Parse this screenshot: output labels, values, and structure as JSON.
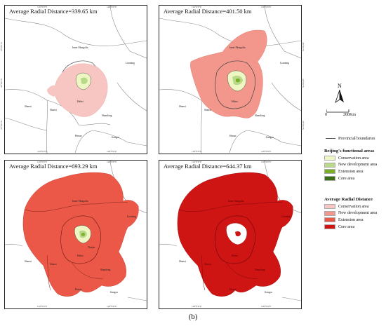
{
  "panels": [
    {
      "title": "Average Radial Distance=339.65 km",
      "level": "conservation"
    },
    {
      "title": "Average Radial Distance=401.50 km",
      "level": "new_development"
    },
    {
      "title": "Average Radial Distance=693.29 km",
      "level": "extension"
    },
    {
      "title": "Average Radial Distance=644.37 km",
      "level": "core"
    }
  ],
  "map_labels": {
    "inner_mongolia": "Inner Mongolia",
    "liaoning": "Liaoning",
    "hebei": "Hebei",
    "shanxi": "Shanxi",
    "shandong": "Shandong",
    "henan": "Henan",
    "jiangsu": "Jiangsu",
    "tianjin": "Tianjin"
  },
  "graticule": {
    "top": [
      "110°0'0\"E",
      "120°0'0\"E"
    ],
    "bottom": [
      "110°0'0\"E",
      "120°0'0\"E"
    ],
    "left": [
      "45°0'0\"N",
      "40°0'0\"N",
      "35°0'0\"N"
    ],
    "right": [
      "45°0'0\"N",
      "40°0'0\"N",
      "35°0'0\"N"
    ]
  },
  "north_arrow": {
    "label": "N"
  },
  "scale_bar": {
    "start": "0",
    "end": "200Km"
  },
  "boundary_legend": {
    "label": "Provincial boundaries"
  },
  "functional_legend": {
    "title": "Beijing's functional areas",
    "items": [
      {
        "label": "Conservation area",
        "color": "#eef7c4"
      },
      {
        "label": "New development area",
        "color": "#b9d98a"
      },
      {
        "label": "Extension area",
        "color": "#7ab024"
      },
      {
        "label": "Core area",
        "color": "#3a6e13"
      }
    ]
  },
  "radial_legend": {
    "title": "Average Radial Distance",
    "items": [
      {
        "label": "Conservation area",
        "color": "#f8c6c2"
      },
      {
        "label": "New development area",
        "color": "#f3978c"
      },
      {
        "label": "Extension area",
        "color": "#eb5848"
      },
      {
        "label": "Core area",
        "color": "#cf1414"
      }
    ]
  },
  "caption": "(b)"
}
